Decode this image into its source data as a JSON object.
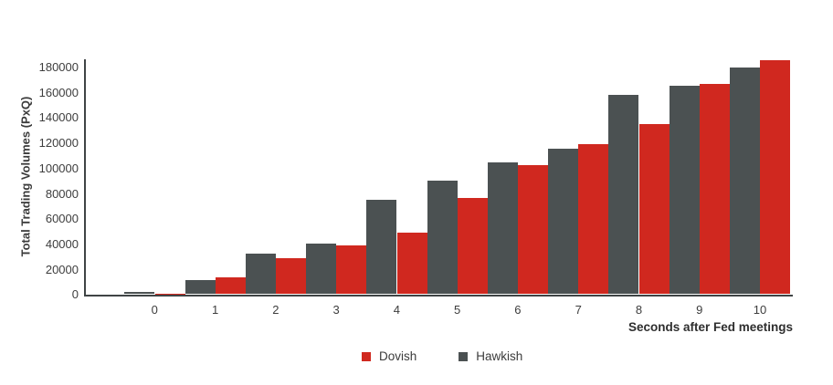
{
  "chart_data": {
    "type": "bar",
    "title": "",
    "xlabel": "Seconds after Fed meetings",
    "ylabel": "Total Trading Volumes (PxQ)",
    "categories": [
      0,
      1,
      2,
      3,
      4,
      5,
      6,
      7,
      8,
      9,
      10
    ],
    "series": [
      {
        "name": "Dovish",
        "color": "#d0281f",
        "values": [
          500,
          13500,
          28500,
          39000,
          48500,
          76000,
          102500,
          118500,
          134500,
          166500,
          185500
        ]
      },
      {
        "name": "Hawkish",
        "color": "#4b5152",
        "values": [
          1500,
          11000,
          32000,
          40000,
          75000,
          90000,
          104500,
          115000,
          158000,
          165000,
          179500
        ]
      }
    ],
    "group_order": [
      "Hawkish",
      "Dovish"
    ],
    "ylim": [
      0,
      180000
    ],
    "yticks": [
      0,
      20000,
      40000,
      60000,
      80000,
      100000,
      120000,
      140000,
      160000,
      180000
    ],
    "grid": false,
    "legend_position": "bottom",
    "axis_color": "#3f4445",
    "tick_label_color": "#3d3d3d"
  },
  "legend": {
    "items": [
      {
        "label": "Dovish",
        "color": "#d0281f"
      },
      {
        "label": "Hawkish",
        "color": "#4b5152"
      }
    ]
  }
}
